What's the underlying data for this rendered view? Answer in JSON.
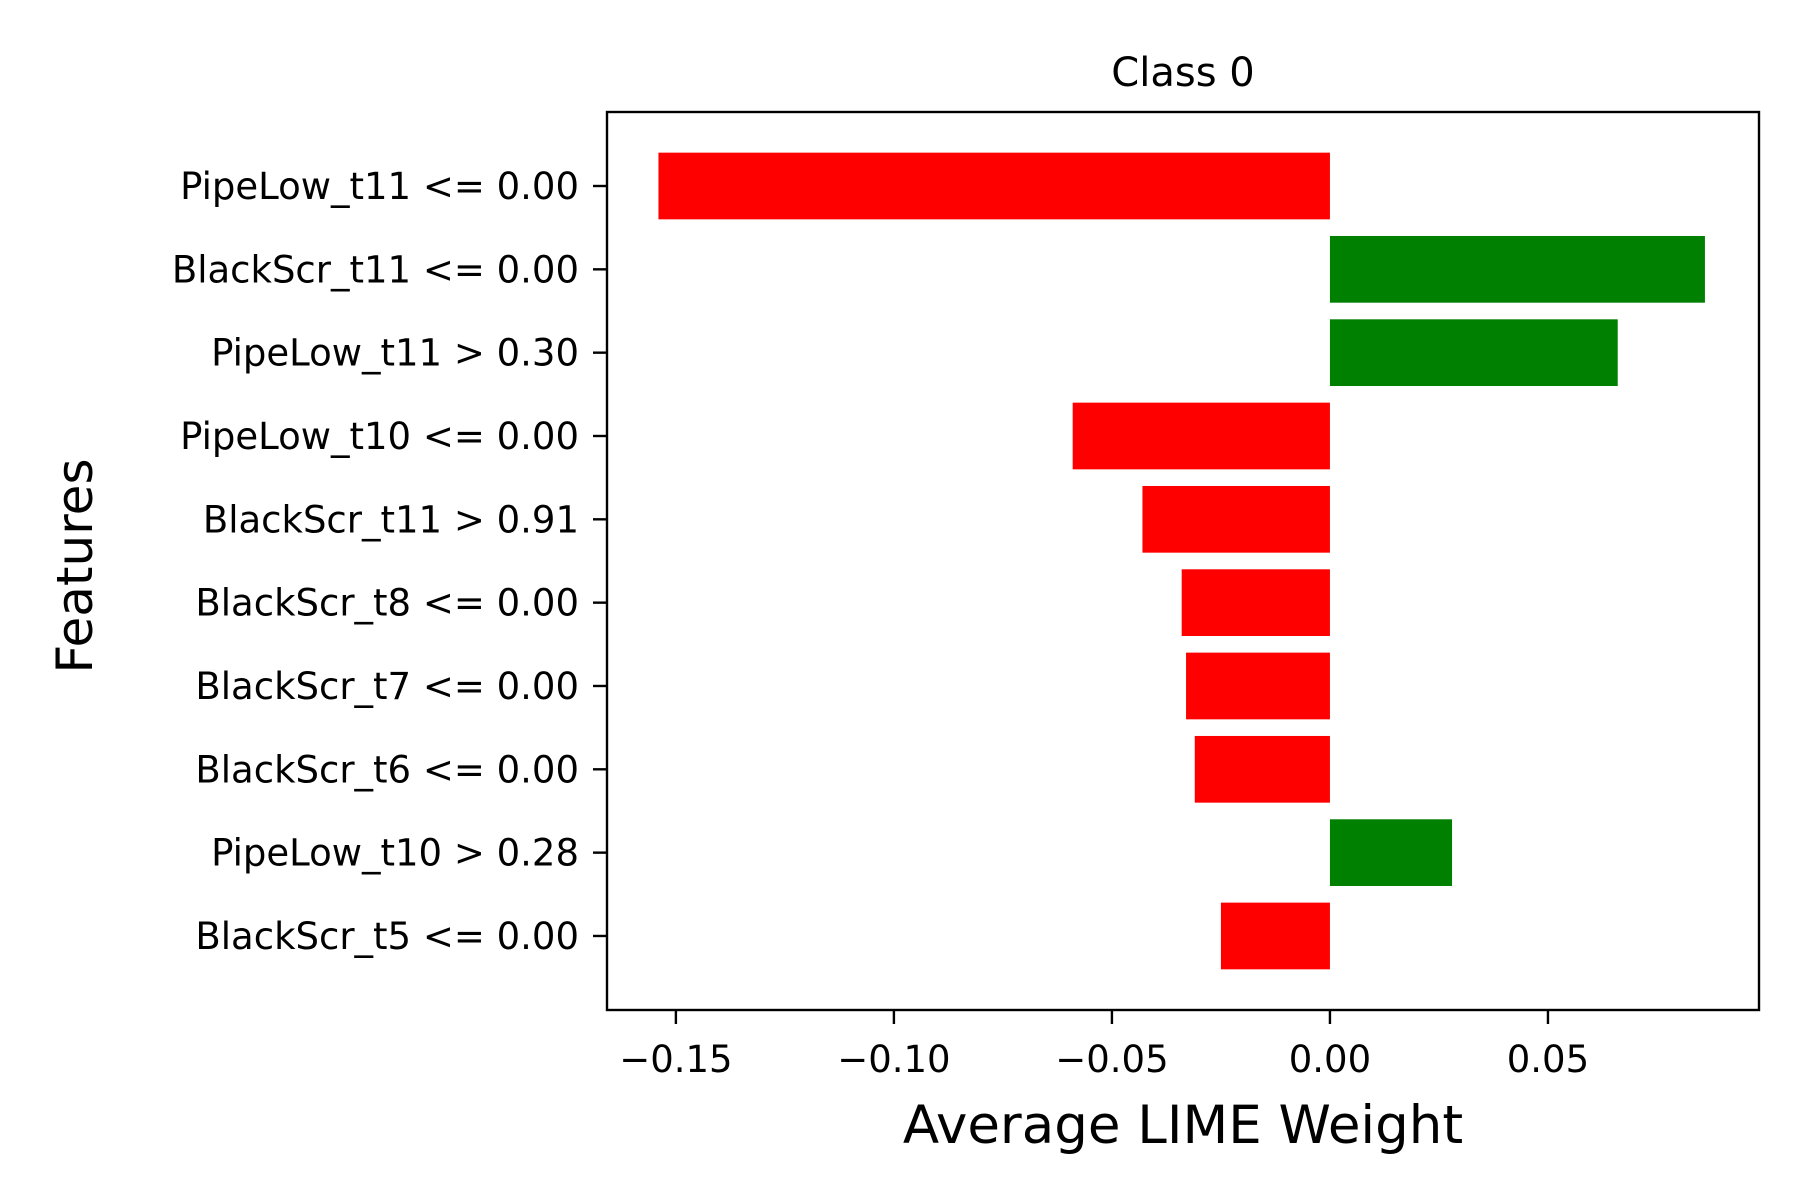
{
  "chart_data": {
    "type": "bar",
    "orientation": "horizontal",
    "title": "Class 0",
    "xlabel": "Average LIME Weight",
    "ylabel": "Features",
    "xlim": [
      -0.1658,
      0.0984
    ],
    "xticks": [
      -0.15,
      -0.1,
      -0.05,
      0.0,
      0.05
    ],
    "xtick_labels": [
      "−0.15",
      "−0.10",
      "−0.05",
      "0.00",
      "0.05"
    ],
    "grid": false,
    "legend": null,
    "categories": [
      "PipeLow_t11 <= 0.00",
      "BlackScr_t11 <= 0.00",
      "PipeLow_t11 > 0.30",
      "PipeLow_t10 <= 0.00",
      "BlackScr_t11 > 0.91",
      "BlackScr_t8 <= 0.00",
      "BlackScr_t7 <= 0.00",
      "BlackScr_t6 <= 0.00",
      "PipeLow_t10 > 0.28",
      "BlackScr_t5 <= 0.00"
    ],
    "values": [
      -0.154,
      0.086,
      0.066,
      -0.059,
      -0.043,
      -0.034,
      -0.033,
      -0.031,
      0.028,
      -0.025
    ],
    "colors": {
      "positive": "#008000",
      "negative": "#ff0000"
    }
  }
}
